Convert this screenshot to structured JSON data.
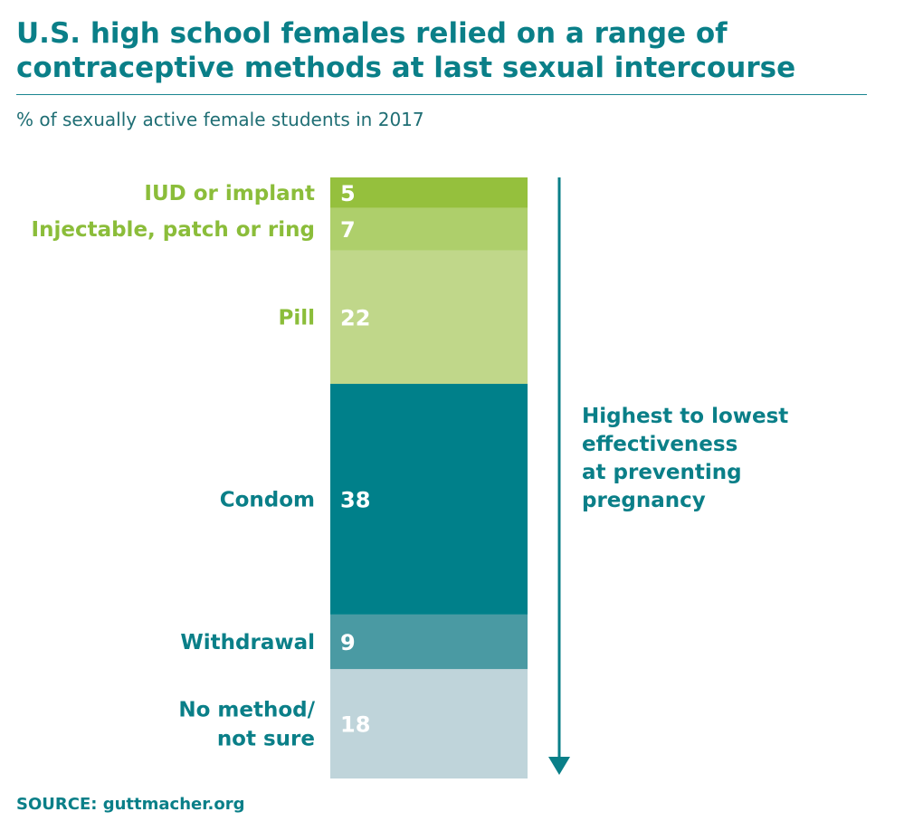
{
  "chart_data": {
    "type": "bar",
    "orientation": "stacked-vertical",
    "title": "U.S. high school females relied on a range of contraceptive methods at last sexual intercourse",
    "subtitle": "% of sexually active female students in 2017",
    "categories": [
      "IUD or implant",
      "Injectable, patch or ring",
      "Pill",
      "Condom",
      "Withdrawal",
      "No method/ not sure"
    ],
    "label_lines": [
      [
        "IUD or implant"
      ],
      [
        "Injectable, patch or ring"
      ],
      [
        "Pill"
      ],
      [
        "Condom"
      ],
      [
        "Withdrawal"
      ],
      [
        "No method/",
        "not sure"
      ]
    ],
    "values": [
      5,
      7,
      22,
      38,
      9,
      18
    ],
    "segment_colors": [
      "#95c03d",
      "#aecf6b",
      "#c0d78a",
      "#00808a",
      "#4a9aa3",
      "#bfd4da"
    ],
    "label_colors": [
      "#8bbd3a",
      "#8bbd3a",
      "#8bbd3a",
      "#0a7f88",
      "#0a7f88",
      "#0a7f88"
    ],
    "annotation": {
      "lines": [
        "Highest to lowest",
        "effectiveness",
        "at preventing",
        "pregnancy"
      ],
      "color": "#0a7f88"
    },
    "source": "SOURCE: guttmacher.org"
  }
}
